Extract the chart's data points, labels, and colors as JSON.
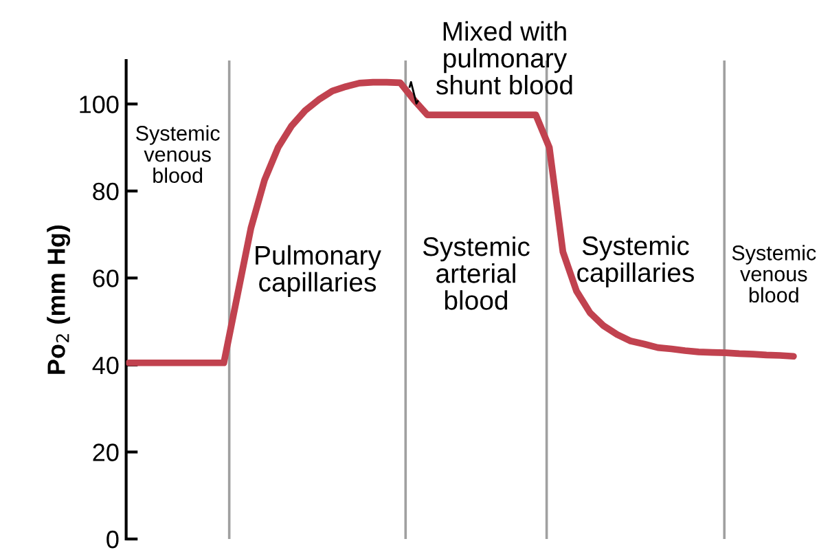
{
  "chart_data": {
    "type": "line",
    "ylabel": "Po$_{2}$ (mm Hg)",
    "categories": [
      null,
      null,
      null,
      null,
      null,
      null,
      null,
      null,
      null,
      null,
      null,
      null,
      null,
      null,
      null,
      null,
      null,
      null,
      null,
      null,
      null,
      null,
      null,
      null,
      null,
      null,
      null,
      null,
      null,
      null,
      null,
      null,
      null,
      null,
      null,
      null,
      null,
      null,
      null,
      null,
      null,
      null,
      null,
      null,
      null,
      null,
      null,
      null,
      null,
      null
    ],
    "series": [
      {
        "color": "#c1424f",
        "values": [
          40.5,
          40.5,
          40.5,
          40.5,
          40.5,
          40.5,
          40.5,
          40.5,
          56,
          71.5,
          82.5,
          90,
          95,
          98.5,
          101,
          103,
          104,
          104.8,
          105,
          105,
          104.9,
          101,
          97.5,
          97.5,
          97.5,
          97.5,
          97.5,
          97.5,
          97.5,
          97.5,
          97.5,
          90,
          66,
          57,
          52,
          49,
          47,
          45.5,
          44.8,
          44,
          43.7,
          43.3,
          43,
          42.9,
          42.8,
          42.6,
          42.5,
          42.3,
          42.2,
          42
        ]
      }
    ],
    "ylim": [
      0,
      110
    ],
    "yticks": [
      0,
      20,
      40,
      60,
      80,
      100
    ],
    "tick_labels": "y",
    "grid": false,
    "legend": false,
    "marker": "none",
    "line_style": "solid",
    "annotations": [
      "Systemic\nvenous\nblood",
      "Pulmonary\ncapillaries",
      "Systemic\narterial\nblood",
      "Systemic\ncapillaries",
      "Systemic\nvenous\nblood",
      "Mixed with\npulmonary\nshunt blood"
    ]
  }
}
